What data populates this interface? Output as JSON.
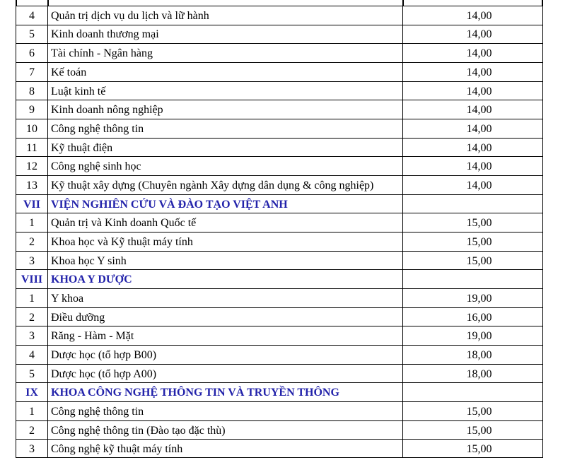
{
  "table": {
    "rows": [
      [
        "4",
        "Quản trị dịch vụ du lịch và lữ hành",
        "14,00"
      ],
      [
        "5",
        "Kinh doanh thương mại",
        "14,00"
      ],
      [
        "6",
        "Tài chính - Ngân hàng",
        "14,00"
      ],
      [
        "7",
        "Kế toán",
        "14,00"
      ],
      [
        "8",
        "Luật kinh tế",
        "14,00"
      ],
      [
        "9",
        "Kinh doanh nông nghiệp",
        "14,00"
      ],
      [
        "10",
        "Công nghệ thông tin",
        "14,00"
      ],
      [
        "11",
        "Kỹ thuật điện",
        "14,00"
      ],
      [
        "12",
        "Công nghệ sinh học",
        "14,00"
      ],
      [
        "13",
        "Kỹ thuật xây dựng (Chuyên ngành Xây dựng dân dụng & công nghiệp)",
        "14,00"
      ],
      [
        "VII",
        "VIỆN NGHIÊN CỨU VÀ ĐÀO TẠO VIỆT ANH"
      ],
      [
        "1",
        "Quản trị và Kinh doanh Quốc tế",
        "15,00"
      ],
      [
        "2",
        "Khoa học và Kỹ thuật máy tính",
        "15,00"
      ],
      [
        "3",
        "Khoa học Y sinh",
        "15,00"
      ],
      [
        "VIII",
        "KHOA Y DƯỢC"
      ],
      [
        "1",
        "Y khoa",
        "19,00"
      ],
      [
        "2",
        "Điều dưỡng",
        "16,00"
      ],
      [
        "3",
        "Răng - Hàm - Mặt",
        "19,00"
      ],
      [
        "4",
        "Dược học (tổ hợp B00)",
        "18,00"
      ],
      [
        "5",
        "Dược học (tổ hợp A00)",
        "18,00"
      ],
      [
        "IX",
        "KHOA CÔNG NGHỆ THÔNG TIN VÀ TRUYỀN THÔNG"
      ],
      [
        "1",
        "Công nghệ thông tin",
        "15,00"
      ],
      [
        "2",
        "Công nghệ thông tin (Đào tạo đặc thù)",
        "15,00"
      ],
      [
        "3",
        "Công nghệ kỹ thuật máy tính",
        "15,00"
      ]
    ]
  }
}
